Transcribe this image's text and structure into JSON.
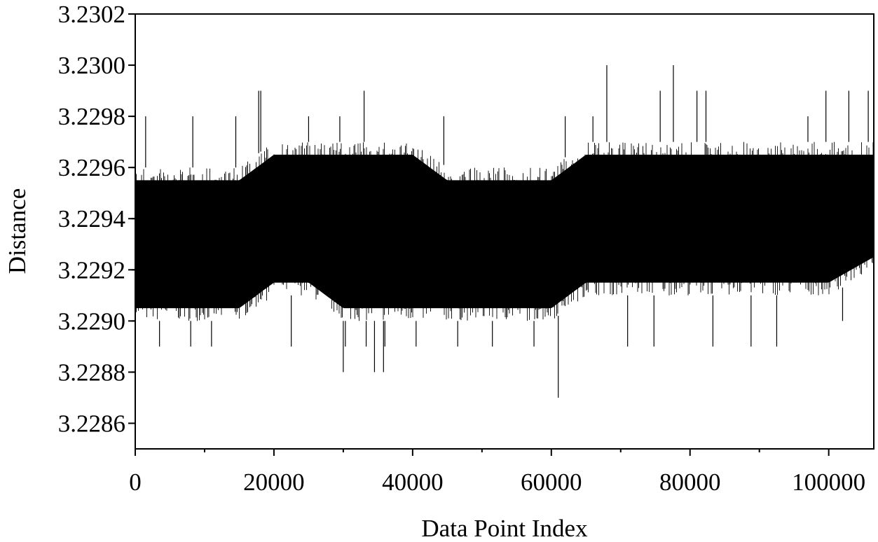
{
  "chart_data": {
    "type": "line",
    "title": "",
    "xlabel": "Data Point Index",
    "ylabel": "Distance",
    "xlim": [
      0,
      106500
    ],
    "ylim": [
      3.2285,
      3.2302
    ],
    "x_ticks": [
      0,
      20000,
      40000,
      60000,
      80000,
      100000
    ],
    "x_tick_labels": [
      "0",
      "20000",
      "40000",
      "60000",
      "80000",
      "100000"
    ],
    "y_ticks": [
      3.2286,
      3.2288,
      3.229,
      3.2292,
      3.2294,
      3.2296,
      3.2298,
      3.23,
      3.2302
    ],
    "y_tick_labels": [
      "3.2286",
      "3.2288",
      "3.2290",
      "3.2292",
      "3.2294",
      "3.2296",
      "3.2298",
      "3.2300",
      "3.2302"
    ],
    "grid": false,
    "legend": "none",
    "series": [
      {
        "color": "#000000",
        "envelope": {
          "x": [
            0,
            5000,
            10000,
            15000,
            20000,
            25000,
            30000,
            35000,
            40000,
            45000,
            50000,
            55000,
            60000,
            65000,
            70000,
            75000,
            80000,
            85000,
            90000,
            95000,
            100000,
            106500
          ],
          "dense_min": [
            3.229,
            3.229,
            3.229,
            3.229,
            3.2291,
            3.2291,
            3.229,
            3.229,
            3.229,
            3.229,
            3.229,
            3.229,
            3.229,
            3.2291,
            3.2291,
            3.2291,
            3.2291,
            3.2291,
            3.2291,
            3.2291,
            3.2291,
            3.2292
          ],
          "dense_max": [
            3.2296,
            3.2296,
            3.2296,
            3.2296,
            3.2297,
            3.2297,
            3.2297,
            3.2297,
            3.2297,
            3.2296,
            3.2296,
            3.2296,
            3.2296,
            3.2297,
            3.2297,
            3.2297,
            3.2297,
            3.2297,
            3.2297,
            3.2297,
            3.2297,
            3.2297
          ]
        },
        "spikes": [
          {
            "x": 1500,
            "y": 3.2298
          },
          {
            "x": 3500,
            "y": 3.2289
          },
          {
            "x": 8000,
            "y": 3.2289
          },
          {
            "x": 8300,
            "y": 3.2298
          },
          {
            "x": 11000,
            "y": 3.2289
          },
          {
            "x": 14500,
            "y": 3.2298
          },
          {
            "x": 17800,
            "y": 3.2299
          },
          {
            "x": 18100,
            "y": 3.2299
          },
          {
            "x": 22500,
            "y": 3.2289
          },
          {
            "x": 25000,
            "y": 3.2298
          },
          {
            "x": 29500,
            "y": 3.2298
          },
          {
            "x": 30000,
            "y": 3.2288
          },
          {
            "x": 30300,
            "y": 3.2289
          },
          {
            "x": 33000,
            "y": 3.2299
          },
          {
            "x": 33300,
            "y": 3.2289
          },
          {
            "x": 34500,
            "y": 3.2288
          },
          {
            "x": 35800,
            "y": 3.2288
          },
          {
            "x": 36000,
            "y": 3.2289
          },
          {
            "x": 40500,
            "y": 3.2289
          },
          {
            "x": 44500,
            "y": 3.2298
          },
          {
            "x": 46500,
            "y": 3.2289
          },
          {
            "x": 51500,
            "y": 3.2289
          },
          {
            "x": 57500,
            "y": 3.2289
          },
          {
            "x": 61000,
            "y": 3.2287
          },
          {
            "x": 62000,
            "y": 3.2298
          },
          {
            "x": 66000,
            "y": 3.2298
          },
          {
            "x": 68000,
            "y": 3.23
          },
          {
            "x": 71000,
            "y": 3.2289
          },
          {
            "x": 74800,
            "y": 3.2289
          },
          {
            "x": 75700,
            "y": 3.2299
          },
          {
            "x": 77600,
            "y": 3.23
          },
          {
            "x": 81000,
            "y": 3.2299
          },
          {
            "x": 82300,
            "y": 3.2299
          },
          {
            "x": 83300,
            "y": 3.2289
          },
          {
            "x": 88800,
            "y": 3.2289
          },
          {
            "x": 92500,
            "y": 3.2289
          },
          {
            "x": 97000,
            "y": 3.2298
          },
          {
            "x": 99600,
            "y": 3.2299
          },
          {
            "x": 102000,
            "y": 3.229
          },
          {
            "x": 102900,
            "y": 3.2299
          },
          {
            "x": 105700,
            "y": 3.2299
          }
        ]
      }
    ]
  }
}
